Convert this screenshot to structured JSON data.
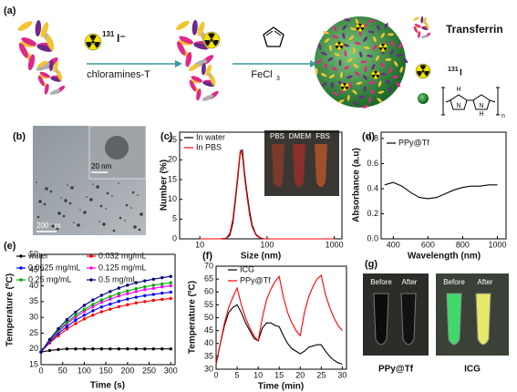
{
  "scheme": {
    "panel": "(a)",
    "iodide_mass": "131",
    "iodide_symbol": "I⁻",
    "reagent1": "chloramines-T",
    "reagent2_main": "FeCl",
    "reagent2_sub": "3",
    "legend_transferrin": "Transferrin",
    "legend_iodine_mass": "131",
    "legend_iodine_symbol": "I",
    "polymer": {
      "h_top": "H",
      "n_top": "N",
      "n_bottom": "N",
      "h_bottom": "H",
      "repeat": "n"
    }
  },
  "images": {
    "tem": {
      "panel": "(b)",
      "inset_scale": "20 nm",
      "scale": "200 nm"
    },
    "dls_photo": {
      "labels": [
        "PBS",
        "DMEM",
        "FBS"
      ]
    },
    "photos": {
      "panel": "(g)",
      "ppy": {
        "before": "Before",
        "after": "After",
        "caption": "PPy@Tf"
      },
      "icg": {
        "before": "Before",
        "after": "After",
        "caption": "ICG"
      }
    }
  },
  "chart_data": [
    {
      "type": "line",
      "panel": "(c)",
      "x_label": "Size (nm)",
      "y_label": "Number (%)",
      "log_x": true,
      "x": [
        10,
        15,
        20,
        25,
        28,
        31,
        34,
        37,
        40,
        43,
        46,
        50,
        55,
        60,
        68,
        78,
        90,
        110,
        200,
        500,
        1000
      ],
      "series": [
        {
          "name": "In water",
          "color": "#000000",
          "values": [
            0,
            0,
            0,
            0.1,
            1,
            4,
            10,
            16,
            22,
            22.5,
            17,
            12,
            7,
            3.5,
            1.2,
            0.3,
            0,
            0,
            0,
            0,
            0
          ]
        },
        {
          "name": "In PBS",
          "color": "#ff0000",
          "values": [
            0,
            0,
            0,
            0.2,
            1.5,
            5,
            11,
            17,
            22.5,
            21,
            16,
            11,
            6,
            3,
            1,
            0.2,
            0,
            0,
            0,
            0,
            0
          ]
        }
      ],
      "xlim": [
        5,
        1300
      ],
      "ylim": [
        0,
        27
      ],
      "xticks": [
        10,
        100,
        1000
      ],
      "yticks": [
        0,
        5,
        10,
        15,
        20,
        25
      ]
    },
    {
      "type": "line",
      "panel": "(d)",
      "x_label": "Wavelength (nm)",
      "y_label": "Absorbance (a.u)",
      "x": [
        350,
        400,
        450,
        500,
        550,
        600,
        650,
        700,
        750,
        800,
        850,
        900,
        950,
        1000
      ],
      "series": [
        {
          "name": "PPy@Tf",
          "color": "#000000",
          "values": [
            0.43,
            0.45,
            0.42,
            0.37,
            0.33,
            0.32,
            0.33,
            0.36,
            0.39,
            0.41,
            0.42,
            0.42,
            0.43,
            0.43
          ]
        }
      ],
      "xlim": [
        330,
        1050
      ],
      "ylim": [
        0,
        0.85
      ],
      "xticks": [
        400,
        600,
        800,
        1000
      ],
      "yticks": [
        {
          "value": 0,
          "label": "0.0"
        },
        0.2,
        0.4,
        0.6,
        0.8
      ]
    },
    {
      "type": "line",
      "panel": "(e)",
      "x_label": "Time (s)",
      "y_label": "Temperature (ºC)",
      "markers": true,
      "x": [
        0,
        20,
        40,
        60,
        80,
        100,
        120,
        140,
        160,
        180,
        200,
        220,
        240,
        260,
        280,
        300
      ],
      "series": [
        {
          "name": "water",
          "color": "#000000",
          "values": [
            19,
            19.5,
            19.8,
            20,
            20,
            20,
            20,
            20,
            20,
            20,
            20,
            20,
            20,
            20,
            20,
            20
          ]
        },
        {
          "name": "0.032 mg/mL",
          "color": "#ff0000",
          "values": [
            19,
            21.9,
            24.2,
            26.3,
            28,
            29.5,
            30.7,
            31.8,
            32.6,
            33.4,
            34,
            34.6,
            35,
            35.4,
            35.7,
            36
          ]
        },
        {
          "name": "0.0625 mg/mL",
          "color": "#0000ff",
          "values": [
            19,
            22.2,
            24.9,
            27.1,
            29.1,
            30.7,
            32.1,
            33.3,
            34.2,
            35.1,
            35.8,
            36.4,
            36.9,
            37.3,
            37.7,
            38
          ]
        },
        {
          "name": "0.125 mg/mL",
          "color": "#ff00ff",
          "values": [
            19,
            22.5,
            25.5,
            28,
            30.1,
            31.9,
            33.4,
            34.8,
            35.8,
            36.8,
            37.5,
            38.2,
            38.8,
            39.2,
            39.7,
            40
          ]
        },
        {
          "name": "0.25 mg/mL",
          "color": "#00aa00",
          "values": [
            19,
            22.7,
            25.8,
            28.4,
            30.7,
            32.5,
            34.1,
            35.5,
            36.6,
            37.6,
            38.4,
            39.1,
            39.7,
            40.2,
            40.6,
            41
          ]
        },
        {
          "name": "0.5 mg/mL",
          "color": "#000080",
          "values": [
            19,
            23,
            26.4,
            29.3,
            31.7,
            33.8,
            35.5,
            37,
            38.2,
            39.3,
            40.2,
            41,
            41.6,
            42.1,
            42.6,
            43
          ]
        }
      ],
      "xlim": [
        0,
        310
      ],
      "ylim": [
        15,
        50
      ],
      "xticks": [
        0,
        50,
        100,
        150,
        200,
        250,
        300
      ],
      "yticks": [
        15,
        20,
        25,
        30,
        35,
        40,
        45,
        50
      ]
    },
    {
      "type": "line",
      "panel": "(f)",
      "x_label": "Time (min)",
      "y_label": "Temperature (ºC)",
      "x": [
        0,
        1,
        2,
        3,
        4,
        5,
        6,
        7,
        8,
        9,
        10,
        11,
        12,
        13,
        14,
        15,
        16,
        17,
        18,
        19,
        20,
        21,
        22,
        23,
        24,
        25,
        26,
        27,
        28,
        29,
        30
      ],
      "series": [
        {
          "name": "ICG",
          "color": "#000000",
          "values": [
            32,
            40,
            47,
            52,
            54,
            55,
            52,
            48,
            45,
            42,
            41,
            46,
            48,
            48,
            47,
            46.5,
            43,
            40,
            38,
            37,
            36,
            37,
            38.5,
            39,
            39.5,
            39.5,
            37,
            35,
            33.5,
            32.5,
            32
          ]
        },
        {
          "name": "PPy@Tf",
          "color": "#ff0000",
          "values": [
            32,
            40,
            48,
            54,
            58,
            61.5,
            55,
            50,
            46,
            43,
            41,
            50,
            57,
            61,
            64,
            66,
            58,
            52,
            48,
            45,
            43,
            52,
            58,
            62,
            65,
            66.5,
            59,
            54,
            50,
            47,
            45
          ]
        }
      ],
      "xlim": [
        0,
        31
      ],
      "ylim": [
        30,
        70
      ],
      "xticks": [
        0,
        5,
        10,
        15,
        20,
        25,
        30
      ],
      "yticks": [
        30,
        35,
        40,
        45,
        50,
        55,
        60,
        65,
        70
      ]
    }
  ]
}
